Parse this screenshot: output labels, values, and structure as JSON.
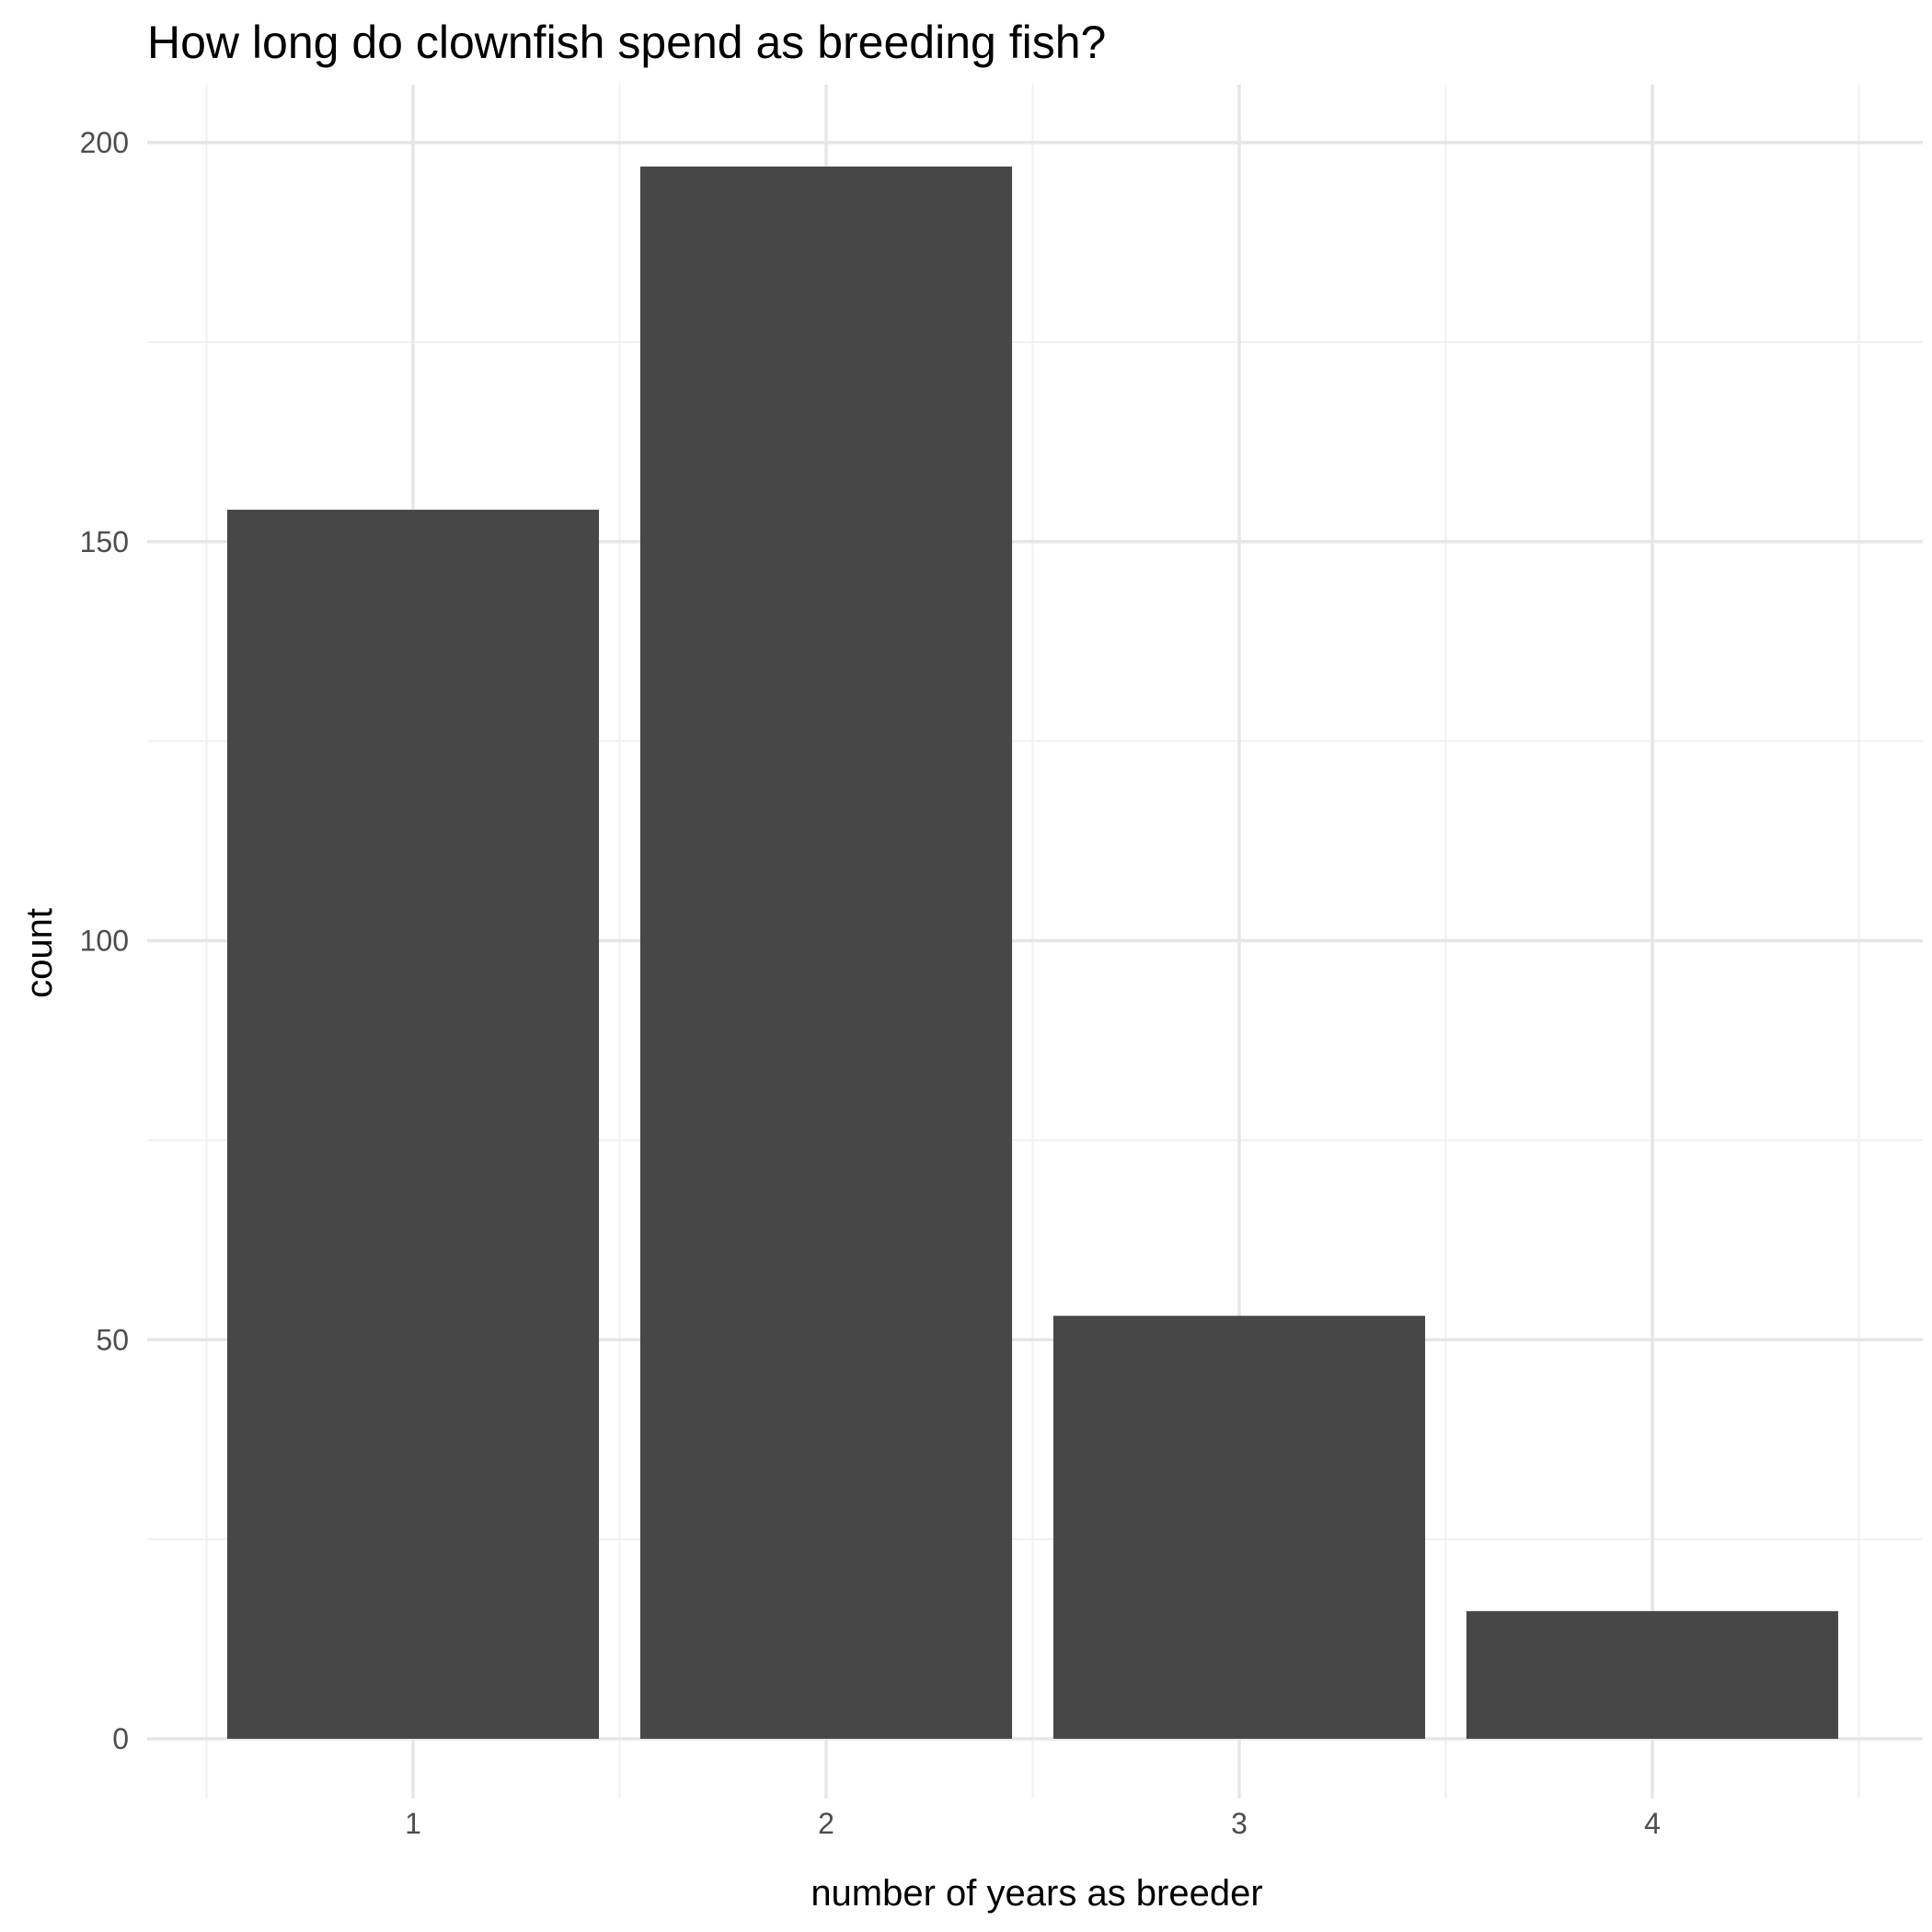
{
  "chart_data": {
    "type": "bar",
    "title": "How long do clownfish spend as breeding fish?",
    "xlabel": "number of years as breeder",
    "ylabel": "count",
    "categories": [
      "1",
      "2",
      "3",
      "4"
    ],
    "values": [
      154,
      197,
      53,
      16
    ],
    "ylim": [
      -10,
      205
    ],
    "y_major_ticks": [
      0,
      50,
      100,
      150,
      200
    ],
    "y_tick_labels": [
      "0",
      "50",
      "100",
      "150",
      "200"
    ],
    "y_minor_ticks": [
      25,
      75,
      125,
      175
    ],
    "grid": true,
    "legend": "none",
    "colors": {
      "bar": "#474747",
      "grid_major": "#e6e6e6",
      "grid_minor": "#f0f0f0",
      "background": "#ffffff"
    }
  }
}
